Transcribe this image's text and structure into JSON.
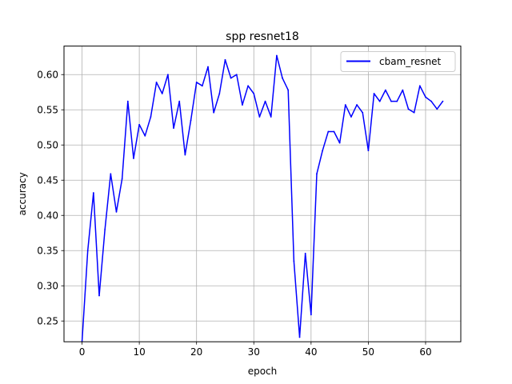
{
  "chart_data": {
    "type": "line",
    "title": "spp resnet18",
    "xlabel": "epoch",
    "ylabel": "accuracy",
    "xlim": [
      -3.15,
      66.15
    ],
    "ylim": [
      0.2205,
      0.6405
    ],
    "xticks": [
      0,
      10,
      20,
      30,
      40,
      50,
      60
    ],
    "yticks": [
      0.25,
      0.3,
      0.35,
      0.4,
      0.45,
      0.5,
      0.55,
      0.6
    ],
    "grid": true,
    "legend_position": "top-right",
    "series": [
      {
        "name": "cbam_resnet",
        "color": "#0000ff",
        "x": [
          0,
          1,
          2,
          3,
          4,
          5,
          6,
          7,
          8,
          9,
          10,
          11,
          12,
          13,
          14,
          15,
          16,
          17,
          18,
          19,
          20,
          21,
          22,
          23,
          24,
          25,
          26,
          27,
          28,
          29,
          30,
          31,
          32,
          33,
          34,
          35,
          36,
          37,
          38,
          39,
          40,
          41,
          42,
          43,
          44,
          45,
          46,
          47,
          48,
          49,
          50,
          51,
          52,
          53,
          54,
          55,
          56,
          57,
          58,
          59,
          60,
          61,
          62,
          63
        ],
        "values": [
          0.221,
          0.35,
          0.432,
          0.286,
          0.38,
          0.459,
          0.405,
          0.452,
          0.562,
          0.481,
          0.529,
          0.513,
          0.54,
          0.589,
          0.573,
          0.6,
          0.524,
          0.562,
          0.486,
          0.535,
          0.589,
          0.584,
          0.611,
          0.546,
          0.573,
          0.621,
          0.595,
          0.6,
          0.557,
          0.584,
          0.573,
          0.54,
          0.562,
          0.54,
          0.627,
          0.595,
          0.578,
          0.335,
          0.227,
          0.346,
          0.259,
          0.459,
          0.492,
          0.519,
          0.519,
          0.503,
          0.557,
          0.54,
          0.557,
          0.546,
          0.492,
          0.573,
          0.562,
          0.578,
          0.562,
          0.562,
          0.578,
          0.551,
          0.546,
          0.584,
          0.568,
          0.562,
          0.551,
          0.562
        ]
      }
    ]
  }
}
